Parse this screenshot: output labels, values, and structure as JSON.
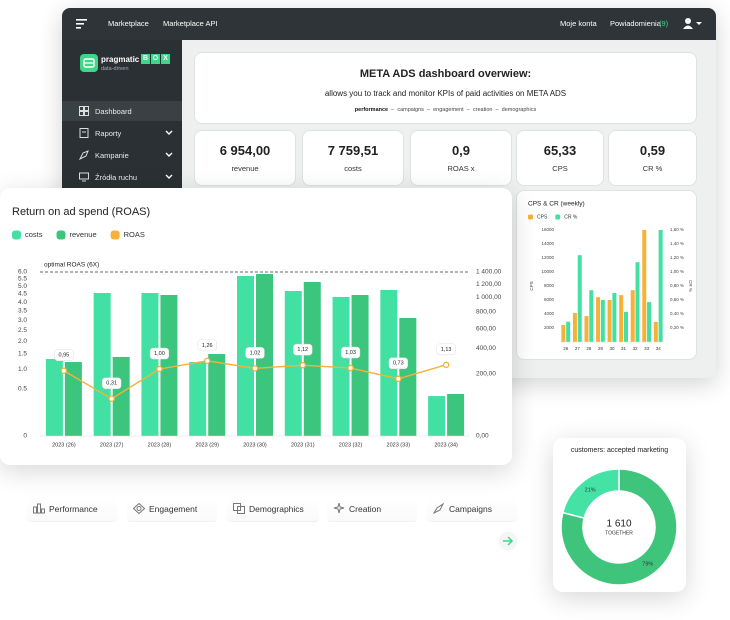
{
  "topbar": {
    "links": [
      "Marketplace",
      "Marketplace API"
    ],
    "account": "Moje konta",
    "notifications": "Powiadomienia",
    "notification_count": "(9)"
  },
  "sidebar": {
    "brand": "pragmatic",
    "brand_box": [
      "B",
      "O",
      "X"
    ],
    "tagline": "data-driven",
    "menu": [
      "Dashboard",
      "Raporty",
      "Kampanie",
      "Źródła ruchu"
    ]
  },
  "header": {
    "title": "META ADS dashboard overwiew:",
    "subtitle": "allows you to track and monitor KPIs of paid activities on META ADS",
    "tabs": [
      "performance",
      "campaigns",
      "engagement",
      "creation",
      "demographics"
    ]
  },
  "kpis": [
    {
      "value": "6 954,00",
      "label": "revenue"
    },
    {
      "value": "7 759,51",
      "label": "costs"
    },
    {
      "value": "0,9",
      "label": "ROAS x"
    },
    {
      "value": "65,33",
      "label": "CPS"
    },
    {
      "value": "0,59",
      "label": "CR %"
    }
  ],
  "chart_data": [
    {
      "type": "bar",
      "title": "Return on ad spend (ROAS)",
      "categories": [
        "2023 (26)",
        "2023 (27)",
        "2023 (28)",
        "2023 (29)",
        "2023 (30)",
        "2023 (31)",
        "2023 (32)",
        "2023 (33)",
        "2023 (34)"
      ],
      "series": [
        {
          "name": "costs",
          "color": "#43e0a3",
          "type": "bar",
          "axis": "y2",
          "values": [
            309,
            1064,
            1064,
            285,
            1333,
            1094,
            1006,
            1110,
            83
          ]
        },
        {
          "name": "revenue",
          "color": "#3cc57c",
          "type": "bar",
          "axis": "y2",
          "values": [
            285,
            325,
            1035,
            350,
            1366,
            1235,
            1035,
            725,
            92
          ]
        },
        {
          "name": "ROAS",
          "color": "#f5b237",
          "type": "line",
          "values": [
            0.95,
            0.31,
            1.0,
            1.26,
            1.02,
            1.12,
            1.03,
            0.73,
            1.13
          ],
          "value_labels": [
            "0,95",
            "0,31",
            "1,00",
            "1,26",
            "1,02",
            "1,12",
            "1,03",
            "0,73",
            "1,13"
          ]
        }
      ],
      "scale": "sqrt",
      "ylim": [
        0,
        6
      ],
      "yticks": [
        0,
        0.5,
        {
          "value": 1,
          "label": "1.0"
        },
        1.5,
        {
          "value": 2,
          "label": "2.0"
        },
        2.5,
        {
          "value": 3,
          "label": "3.0"
        },
        3.5,
        {
          "value": 4,
          "label": "4.0"
        },
        4.5,
        {
          "value": 5,
          "label": "5.0"
        },
        5.5,
        {
          "value": 6,
          "label": "6.0"
        }
      ],
      "y2lim": [
        0,
        1400
      ],
      "y2ticks": [
        {
          "value": 0,
          "label": "0,00"
        },
        {
          "value": 200,
          "label": "200,00"
        },
        {
          "value": 400,
          "label": "400,00"
        },
        {
          "value": 600,
          "label": "600,00"
        },
        {
          "value": 800,
          "label": "800,00"
        },
        {
          "value": 1000,
          "label": "1 000,00"
        },
        {
          "value": 1200,
          "label": "1 200,00"
        },
        {
          "value": 1400,
          "label": "1 400,00"
        }
      ],
      "reference_line": {
        "value": 6,
        "label": "optimal ROAS (6X)"
      },
      "grid": false,
      "legend": "top-left"
    },
    {
      "type": "bar",
      "title": "CPS & CR (weekly)",
      "categories": [
        "26",
        "27",
        "28",
        "29",
        "30",
        "31",
        "32",
        "33",
        "34"
      ],
      "ylabel": "CPS",
      "y2label": "CR %",
      "series": [
        {
          "name": "CPS",
          "color": "#f5b237",
          "type": "bar",
          "values": [
            2430,
            4140,
            3700,
            6400,
            6000,
            6700,
            7400,
            16000,
            2860
          ]
        },
        {
          "name": "CR %",
          "color": "#43e0a3",
          "type": "bar",
          "axis": "y2",
          "values": [
            0.29,
            1.24,
            0.74,
            0.6,
            0.7,
            0.43,
            1.14,
            0.57,
            1.6
          ]
        }
      ],
      "ylim": [
        0,
        16000
      ],
      "yticks": [
        2000,
        4000,
        6000,
        8000,
        10000,
        12000,
        14000,
        16000
      ],
      "y2lim": [
        0,
        1.6
      ],
      "y2ticks": [
        {
          "value": 0.2,
          "label": "0,20 %"
        },
        {
          "value": 0.4,
          "label": "0,40 %"
        },
        {
          "value": 0.6,
          "label": "0,60 %"
        },
        {
          "value": 0.8,
          "label": "0,80 %"
        },
        {
          "value": 1.0,
          "label": "1,00 %"
        },
        {
          "value": 1.2,
          "label": "1,20 %"
        },
        {
          "value": 1.4,
          "label": "1,40 %"
        },
        {
          "value": 1.6,
          "label": "1,60 %"
        }
      ],
      "grid": false,
      "legend": "top-left"
    },
    {
      "type": "pie",
      "title": "customers: accepted marketing",
      "values": [
        79,
        21
      ],
      "value_labels": [
        "79%",
        "21%"
      ],
      "colors": [
        "#3fc47c",
        "#45e2a5"
      ],
      "donut": true,
      "center_label": "1 610",
      "center_sublabel": "TOGETHER"
    }
  ],
  "bottom_tabs": [
    "Performance",
    "Engagement",
    "Demographics",
    "Creation",
    "Campaigns"
  ]
}
